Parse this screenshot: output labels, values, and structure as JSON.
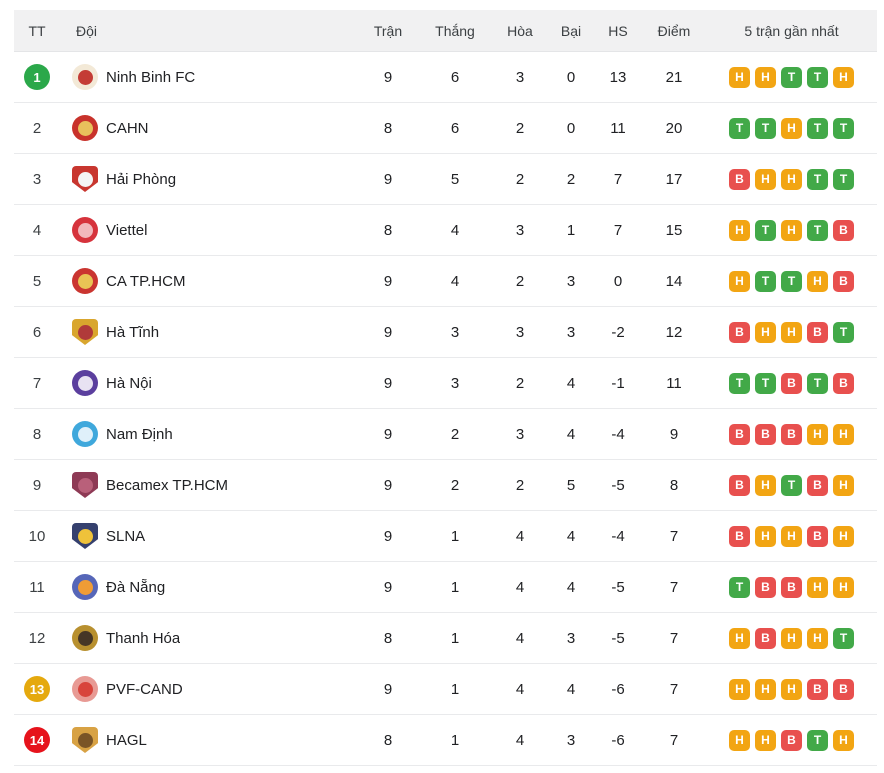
{
  "table": {
    "columns": {
      "tt": "TT",
      "team": "Đội",
      "played": "Trận",
      "won": "Thắng",
      "drawn": "Hòa",
      "lost": "Bại",
      "gd": "HS",
      "points": "Điểm",
      "form": "5 trận gần nhất"
    },
    "form_colors": {
      "T": "#42a948",
      "H": "#f2a513",
      "B": "#e8504e"
    },
    "pos_badge_colors": {
      "green": "#2ba84a",
      "amber": "#e5a90e",
      "red": "#e6131c"
    },
    "rows": [
      {
        "pos": "1",
        "pos_badge": "green",
        "team": "Ninh Binh FC",
        "played": "9",
        "won": "6",
        "drawn": "3",
        "lost": "0",
        "gd": "13",
        "points": "21",
        "form": [
          "H",
          "H",
          "T",
          "T",
          "H"
        ],
        "logo": {
          "shape": "circle",
          "bg": "#f3e9d7",
          "inner": "#c43c35"
        }
      },
      {
        "pos": "2",
        "pos_badge": null,
        "team": "CAHN",
        "played": "8",
        "won": "6",
        "drawn": "2",
        "lost": "0",
        "gd": "11",
        "points": "20",
        "form": [
          "T",
          "T",
          "H",
          "T",
          "T"
        ],
        "logo": {
          "shape": "circle",
          "bg": "#c8322b",
          "inner": "#e8c05c"
        }
      },
      {
        "pos": "3",
        "pos_badge": null,
        "team": "Hải Phòng",
        "played": "9",
        "won": "5",
        "drawn": "2",
        "lost": "2",
        "gd": "7",
        "points": "17",
        "form": [
          "B",
          "H",
          "H",
          "T",
          "T"
        ],
        "logo": {
          "shape": "shield",
          "bg": "#c8362f",
          "inner": "#f4f4f4"
        }
      },
      {
        "pos": "4",
        "pos_badge": null,
        "team": "Viettel",
        "played": "8",
        "won": "4",
        "drawn": "3",
        "lost": "1",
        "gd": "7",
        "points": "15",
        "form": [
          "H",
          "T",
          "H",
          "T",
          "B"
        ],
        "logo": {
          "shape": "circle",
          "bg": "#d6333c",
          "inner": "#f2b8bc"
        }
      },
      {
        "pos": "5",
        "pos_badge": null,
        "team": "CA TP.HCM",
        "played": "9",
        "won": "4",
        "drawn": "2",
        "lost": "3",
        "gd": "0",
        "points": "14",
        "form": [
          "H",
          "T",
          "T",
          "H",
          "B"
        ],
        "logo": {
          "shape": "circle",
          "bg": "#ca3530",
          "inner": "#e9c455"
        }
      },
      {
        "pos": "6",
        "pos_badge": null,
        "team": "Hà Tĩnh",
        "played": "9",
        "won": "3",
        "drawn": "3",
        "lost": "3",
        "gd": "-2",
        "points": "12",
        "form": [
          "B",
          "H",
          "H",
          "B",
          "T"
        ],
        "logo": {
          "shape": "shield",
          "bg": "#d9a62e",
          "inner": "#b03a3a"
        }
      },
      {
        "pos": "7",
        "pos_badge": null,
        "team": "Hà Nội",
        "played": "9",
        "won": "3",
        "drawn": "2",
        "lost": "4",
        "gd": "-1",
        "points": "11",
        "form": [
          "T",
          "T",
          "B",
          "T",
          "B"
        ],
        "logo": {
          "shape": "circle",
          "bg": "#5b3f9e",
          "inner": "#e8e2f2"
        }
      },
      {
        "pos": "8",
        "pos_badge": null,
        "team": "Nam Định",
        "played": "9",
        "won": "2",
        "drawn": "3",
        "lost": "4",
        "gd": "-4",
        "points": "9",
        "form": [
          "B",
          "B",
          "B",
          "H",
          "H"
        ],
        "logo": {
          "shape": "circle",
          "bg": "#3fa8dc",
          "inner": "#dff0fa"
        }
      },
      {
        "pos": "9",
        "pos_badge": null,
        "team": "Becamex TP.HCM",
        "played": "9",
        "won": "2",
        "drawn": "2",
        "lost": "5",
        "gd": "-5",
        "points": "8",
        "form": [
          "B",
          "H",
          "T",
          "B",
          "H"
        ],
        "logo": {
          "shape": "shield",
          "bg": "#8e3a55",
          "inner": "#b9607a"
        }
      },
      {
        "pos": "10",
        "pos_badge": null,
        "team": "SLNA",
        "played": "9",
        "won": "1",
        "drawn": "4",
        "lost": "4",
        "gd": "-4",
        "points": "7",
        "form": [
          "B",
          "H",
          "H",
          "B",
          "H"
        ],
        "logo": {
          "shape": "shield",
          "bg": "#35406e",
          "inner": "#efc23a"
        }
      },
      {
        "pos": "11",
        "pos_badge": null,
        "team": "Đà Nẵng",
        "played": "9",
        "won": "1",
        "drawn": "4",
        "lost": "4",
        "gd": "-5",
        "points": "7",
        "form": [
          "T",
          "B",
          "B",
          "H",
          "H"
        ],
        "logo": {
          "shape": "circle",
          "bg": "#5666b8",
          "inner": "#ef9c36"
        }
      },
      {
        "pos": "12",
        "pos_badge": null,
        "team": "Thanh Hóa",
        "played": "8",
        "won": "1",
        "drawn": "4",
        "lost": "3",
        "gd": "-5",
        "points": "7",
        "form": [
          "H",
          "B",
          "H",
          "H",
          "T"
        ],
        "logo": {
          "shape": "circle",
          "bg": "#b8902f",
          "inner": "#463626"
        }
      },
      {
        "pos": "13",
        "pos_badge": "amber",
        "team": "PVF-CAND",
        "played": "9",
        "won": "1",
        "drawn": "4",
        "lost": "4",
        "gd": "-6",
        "points": "7",
        "form": [
          "H",
          "H",
          "H",
          "B",
          "B"
        ],
        "logo": {
          "shape": "circle",
          "bg": "#e89a94",
          "inner": "#d8443c"
        }
      },
      {
        "pos": "14",
        "pos_badge": "red",
        "team": "HAGL",
        "played": "8",
        "won": "1",
        "drawn": "4",
        "lost": "3",
        "gd": "-6",
        "points": "7",
        "form": [
          "H",
          "H",
          "B",
          "T",
          "H"
        ],
        "logo": {
          "shape": "shield",
          "bg": "#d8a244",
          "inner": "#7a5426"
        }
      }
    ]
  }
}
